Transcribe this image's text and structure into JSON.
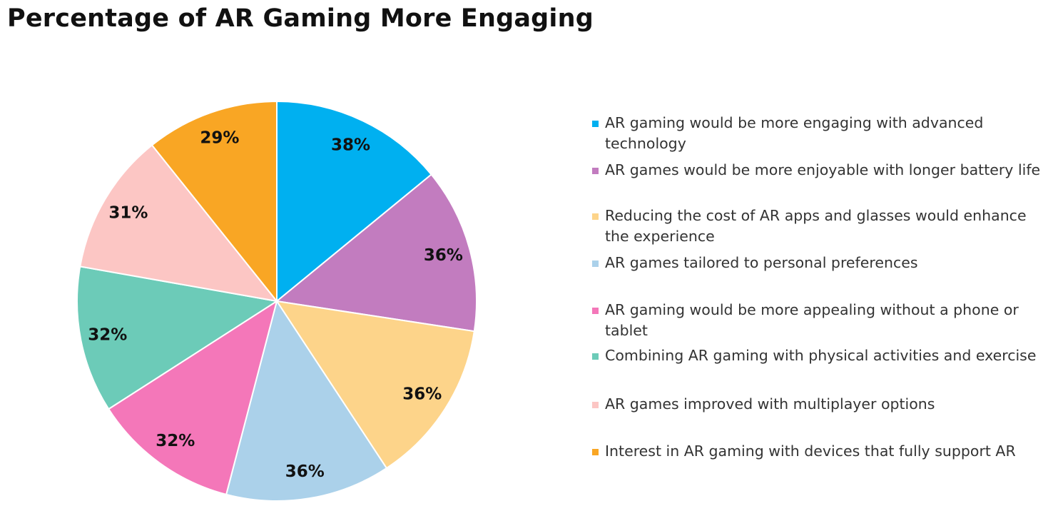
{
  "chart_data": {
    "type": "pie",
    "title": "Percentage of AR Gaming More Engaging",
    "legend_position": "right",
    "slices": [
      {
        "label": "AR gaming would be more engaging with advanced technology",
        "value": 38,
        "display": "38%",
        "color": "#00b0f0"
      },
      {
        "label": "AR games would be more enjoyable with longer battery life",
        "value": 36,
        "display": "36%",
        "color": "#c27cbf"
      },
      {
        "label": "Reducing the cost of AR apps and glasses would enhance the experience",
        "value": 36,
        "display": "36%",
        "color": "#fdd48a"
      },
      {
        "label": "AR games tailored to personal preferences",
        "value": 36,
        "display": "36%",
        "color": "#abd1ea"
      },
      {
        "label": "AR gaming would be more appealing without a phone or tablet",
        "value": 32,
        "display": "32%",
        "color": "#f477b9"
      },
      {
        "label": "Combining AR gaming with physical activities and exercise",
        "value": 32,
        "display": "32%",
        "color": "#6ccbb8"
      },
      {
        "label": "AR games improved with multiplayer options",
        "value": 31,
        "display": "31%",
        "color": "#fcc6c4"
      },
      {
        "label": "Interest in AR gaming with devices that fully support AR",
        "value": 29,
        "display": "29%",
        "color": "#f9a624"
      }
    ]
  }
}
